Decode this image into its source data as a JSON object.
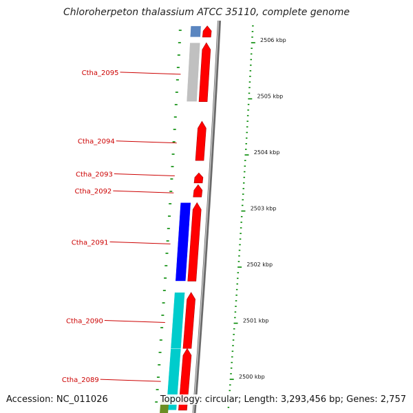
{
  "title": "Chloroherpeton thalassium ATCC 35110, complete genome",
  "footer": {
    "accession": "Accession: NC_011026",
    "topology": "Topology: circular; Length: 3,293,456 bp; Genes: 2,757"
  },
  "scale": {
    "ticks": [
      {
        "kbp": 2506,
        "label": "2506 kbp"
      },
      {
        "kbp": 2505,
        "label": "2505 kbp"
      },
      {
        "kbp": 2504,
        "label": "2504 kbp"
      },
      {
        "kbp": 2503,
        "label": "2503 kbp"
      },
      {
        "kbp": 2502,
        "label": "2502 kbp"
      },
      {
        "kbp": 2501,
        "label": "2501 kbp"
      },
      {
        "kbp": 2500,
        "label": "2500 kbp"
      }
    ]
  },
  "colors": {
    "forward_cds": "#ff0000",
    "label_text": "#cc0000",
    "tick_green": "#008800",
    "backbone": "#808080",
    "cog_blue": "#0000ff",
    "cog_steelblue": "#5b86c0",
    "cog_grey": "#c0c0c0",
    "cog_cyan": "#00cccc",
    "cog_olive": "#6b8e23"
  },
  "genes": [
    {
      "name": "",
      "start_kbp": 2506.25,
      "end_kbp": 2506.05,
      "cog_color": "#5b86c0"
    },
    {
      "name": "Ctha_2095",
      "start_kbp": 2505.95,
      "end_kbp": 2504.9,
      "cog_color": "#c0c0c0"
    },
    {
      "name": "Ctha_2094",
      "start_kbp": 2504.55,
      "end_kbp": 2503.85,
      "cog_color": null
    },
    {
      "name": "Ctha_2093",
      "start_kbp": 2503.63,
      "end_kbp": 2503.45,
      "cog_color": null
    },
    {
      "name": "Ctha_2092",
      "start_kbp": 2503.42,
      "end_kbp": 2503.2,
      "cog_color": null
    },
    {
      "name": "Ctha_2091",
      "start_kbp": 2503.1,
      "end_kbp": 2501.7,
      "cog_color": "#0000ff"
    },
    {
      "name": "Ctha_2090",
      "start_kbp": 2501.5,
      "end_kbp": 2500.5,
      "cog_color": "#00cccc"
    },
    {
      "name": "Ctha_2089",
      "start_kbp": 2500.5,
      "end_kbp": 2499.4,
      "cog_color": "#00cccc"
    }
  ]
}
